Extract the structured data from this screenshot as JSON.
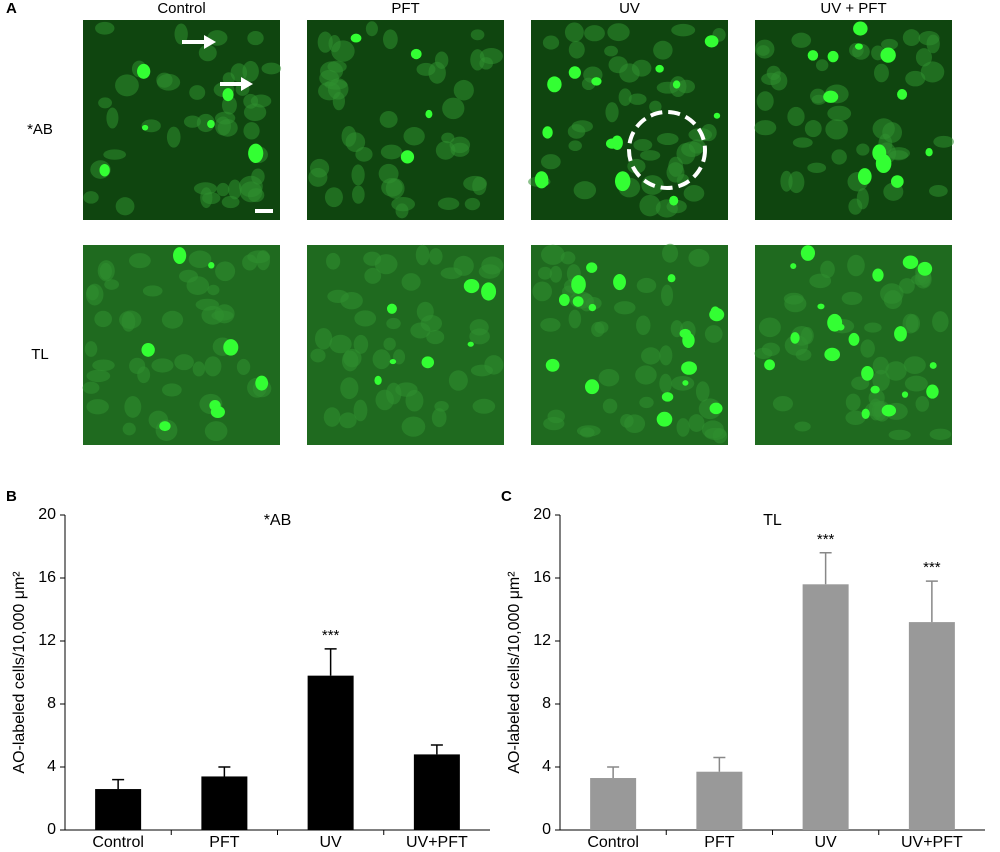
{
  "panel_a": {
    "label": "A",
    "columns": [
      "Control",
      "PFT",
      "UV",
      "UV + PFT"
    ],
    "rows": [
      "*AB",
      "TL"
    ]
  },
  "chart_data": [
    {
      "type": "bar",
      "panel_label": "B",
      "title": "*AB",
      "y_label": "AO-labeled cells/10,000 μm²",
      "categories": [
        "Control",
        "PFT",
        "UV",
        "UV+PFT"
      ],
      "values": [
        2.6,
        3.4,
        9.8,
        4.8
      ],
      "errors": [
        0.6,
        0.6,
        1.7,
        0.6
      ],
      "significance": [
        null,
        null,
        "***",
        null
      ],
      "color": "#000000",
      "ylim": [
        0,
        20
      ],
      "yticks": [
        0,
        4,
        8,
        12,
        16,
        20
      ]
    },
    {
      "type": "bar",
      "panel_label": "C",
      "title": "TL",
      "y_label": "AO-labeled cells/10,000 μm²",
      "categories": [
        "Control",
        "PFT",
        "UV",
        "UV+PFT"
      ],
      "values": [
        3.3,
        3.7,
        15.6,
        13.2
      ],
      "errors": [
        0.7,
        0.9,
        2.0,
        2.6
      ],
      "significance": [
        null,
        null,
        "***",
        "***"
      ],
      "color": "#999999",
      "ylim": [
        0,
        20
      ],
      "yticks": [
        0,
        4,
        8,
        12,
        16,
        20
      ]
    }
  ]
}
